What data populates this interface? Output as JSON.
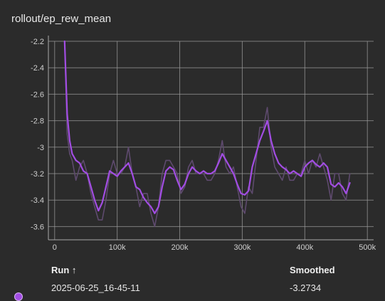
{
  "card": {
    "title": "rollout/ep_rew_mean"
  },
  "legend": {
    "run_header": "Run ↑",
    "smoothed_header": "Smoothed",
    "run_name": "2025-06-25_16-45-11",
    "smoothed_value": "-3.2734"
  },
  "colors": {
    "background": "#2b2b2b",
    "grid": "#9a9a9a",
    "raw_series": "#5e4a6e",
    "smoothed_series": "#a24de3"
  },
  "chart_data": {
    "type": "line",
    "title": "",
    "xlabel": "",
    "ylabel": "",
    "xlim": [
      -10000,
      510000
    ],
    "ylim": [
      -3.7,
      -2.2
    ],
    "xticks": [
      0,
      100000,
      200000,
      300000,
      400000,
      500000
    ],
    "xtick_labels": [
      "0",
      "100k",
      "200k",
      "300k",
      "400k",
      "500k"
    ],
    "yticks": [
      -2.2,
      -2.4,
      -2.6,
      -2.8,
      -3,
      -3.2,
      -3.4,
      -3.6
    ],
    "ytick_labels": [
      "-2.2",
      "-2.4",
      "-2.6",
      "-2.8",
      "-3",
      "-3.2",
      "-3.4",
      "-3.6"
    ],
    "grid": true,
    "series": [
      {
        "role": "raw",
        "x": [
          16000,
          20000,
          24000,
          28000,
          34000,
          40000,
          46000,
          52000,
          58000,
          64000,
          70000,
          76000,
          82000,
          88000,
          94000,
          100000,
          106000,
          112000,
          118000,
          124000,
          130000,
          136000,
          142000,
          148000,
          154000,
          160000,
          166000,
          172000,
          178000,
          184000,
          190000,
          196000,
          202000,
          208000,
          214000,
          220000,
          226000,
          232000,
          238000,
          244000,
          250000,
          256000,
          262000,
          268000,
          274000,
          280000,
          286000,
          292000,
          298000,
          304000,
          310000,
          316000,
          322000,
          328000,
          334000,
          340000,
          346000,
          352000,
          358000,
          364000,
          370000,
          376000,
          382000,
          388000,
          394000,
          400000,
          406000,
          412000,
          418000,
          424000,
          430000,
          436000,
          442000,
          448000,
          454000,
          460000,
          466000,
          472000
        ],
        "y": [
          -2.2,
          -2.9,
          -3.05,
          -3.1,
          -3.25,
          -3.15,
          -3.1,
          -3.2,
          -3.35,
          -3.45,
          -3.55,
          -3.55,
          -3.4,
          -3.2,
          -3.1,
          -3.2,
          -3.2,
          -3.15,
          -3.0,
          -3.2,
          -3.3,
          -3.45,
          -3.35,
          -3.35,
          -3.5,
          -3.6,
          -3.45,
          -3.2,
          -3.1,
          -3.1,
          -3.15,
          -3.2,
          -3.35,
          -3.3,
          -3.15,
          -3.1,
          -3.2,
          -3.2,
          -3.2,
          -3.25,
          -3.25,
          -3.2,
          -3.1,
          -2.95,
          -3.15,
          -3.2,
          -3.15,
          -3.3,
          -3.45,
          -3.5,
          -3.3,
          -3.35,
          -3.1,
          -2.85,
          -2.85,
          -2.7,
          -3.0,
          -3.15,
          -3.2,
          -3.25,
          -3.15,
          -3.25,
          -3.25,
          -3.2,
          -3.2,
          -3.1,
          -3.2,
          -3.1,
          -3.15,
          -3.05,
          -3.15,
          -3.25,
          -3.4,
          -3.2,
          -3.2,
          -3.35,
          -3.4,
          -3.2
        ]
      },
      {
        "role": "smoothed",
        "name": "2025-06-25_16-45-11",
        "x": [
          16000,
          20000,
          24000,
          28000,
          34000,
          40000,
          46000,
          52000,
          58000,
          64000,
          70000,
          76000,
          82000,
          88000,
          94000,
          100000,
          106000,
          112000,
          118000,
          124000,
          130000,
          136000,
          142000,
          148000,
          154000,
          160000,
          166000,
          172000,
          178000,
          184000,
          190000,
          196000,
          202000,
          208000,
          214000,
          220000,
          226000,
          232000,
          238000,
          244000,
          250000,
          256000,
          262000,
          268000,
          274000,
          280000,
          286000,
          292000,
          298000,
          304000,
          310000,
          316000,
          322000,
          328000,
          334000,
          340000,
          346000,
          352000,
          358000,
          364000,
          370000,
          376000,
          382000,
          388000,
          394000,
          400000,
          406000,
          412000,
          418000,
          424000,
          430000,
          436000,
          442000,
          448000,
          454000,
          460000,
          466000,
          472000
        ],
        "y": [
          -2.2,
          -2.75,
          -2.95,
          -3.05,
          -3.1,
          -3.12,
          -3.18,
          -3.2,
          -3.3,
          -3.4,
          -3.48,
          -3.42,
          -3.3,
          -3.18,
          -3.2,
          -3.22,
          -3.18,
          -3.15,
          -3.12,
          -3.2,
          -3.3,
          -3.32,
          -3.38,
          -3.42,
          -3.45,
          -3.5,
          -3.45,
          -3.3,
          -3.18,
          -3.15,
          -3.17,
          -3.25,
          -3.32,
          -3.28,
          -3.2,
          -3.15,
          -3.18,
          -3.2,
          -3.18,
          -3.2,
          -3.2,
          -3.18,
          -3.12,
          -3.05,
          -3.1,
          -3.15,
          -3.2,
          -3.28,
          -3.35,
          -3.36,
          -3.33,
          -3.15,
          -3.05,
          -2.95,
          -2.88,
          -2.8,
          -2.95,
          -3.05,
          -3.12,
          -3.15,
          -3.17,
          -3.2,
          -3.18,
          -3.2,
          -3.22,
          -3.15,
          -3.12,
          -3.1,
          -3.13,
          -3.15,
          -3.12,
          -3.15,
          -3.28,
          -3.3,
          -3.27,
          -3.3,
          -3.35,
          -3.27
        ]
      }
    ]
  }
}
